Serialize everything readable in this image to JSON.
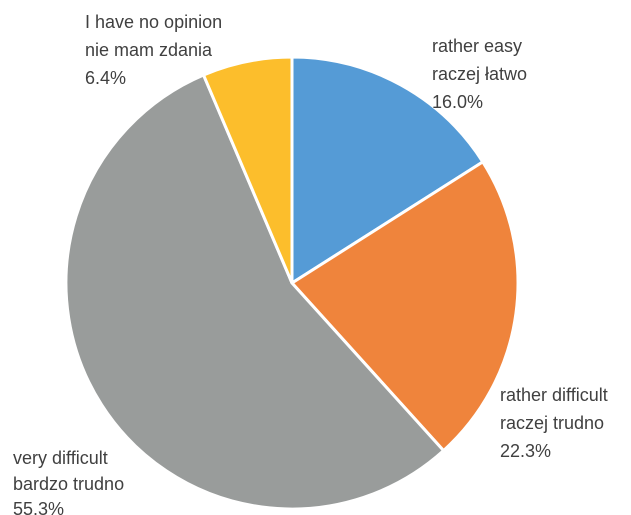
{
  "chart_data": {
    "type": "pie",
    "title": "",
    "start_angle_deg": 0,
    "direction": "clockwise",
    "slice_border_color": "#ffffff",
    "label_color": "#404040",
    "slices": [
      {
        "label_en": "rather easy",
        "label_pl": "raczej łatwo",
        "value": 16.0,
        "value_label": "16.0%",
        "color": "#559BD6"
      },
      {
        "label_en": "rather difficult",
        "label_pl": "raczej trudno",
        "value": 22.3,
        "value_label": "22.3%",
        "color": "#EF843C"
      },
      {
        "label_en": "very difficult",
        "label_pl": "bardzo trudno",
        "value": 55.3,
        "value_label": "55.3%",
        "color": "#999C9B"
      },
      {
        "label_en": "I have no opinion",
        "label_pl": "nie mam zdania",
        "value": 6.4,
        "value_label": "6.4%",
        "color": "#FCBE2C"
      }
    ]
  }
}
